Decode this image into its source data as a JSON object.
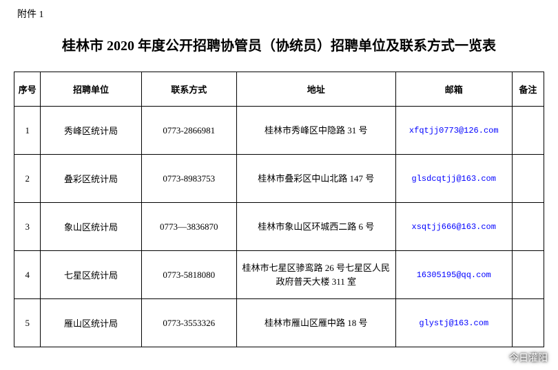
{
  "attachment_label": "附件 1",
  "title": "桂林市 2020 年度公开招聘协管员（协统员）招聘单位及联系方式一览表",
  "table": {
    "columns": [
      "序号",
      "招聘单位",
      "联系方式",
      "地址",
      "邮箱",
      "备注"
    ],
    "rows": [
      {
        "seq": "1",
        "unit": "秀峰区统计局",
        "contact": "0773-2866981",
        "address": "桂林市秀峰区中隐路 31 号",
        "email": "xfqtjj0773@126.com",
        "note": ""
      },
      {
        "seq": "2",
        "unit": "叠彩区统计局",
        "contact": "0773-8983753",
        "address": "桂林市叠彩区中山北路 147 号",
        "email": "glsdcqtjj@163.com",
        "note": ""
      },
      {
        "seq": "3",
        "unit": "象山区统计局",
        "contact": "0773—3836870",
        "address": "桂林市象山区环城西二路 6 号",
        "email": "xsqtjj666@163.com",
        "note": ""
      },
      {
        "seq": "4",
        "unit": "七星区统计局",
        "contact": "0773-5818080",
        "address": "桂林市七星区骖鸾路 26 号七星区人民政府普天大楼 311 室",
        "email": "16305195@qq.com",
        "note": ""
      },
      {
        "seq": "5",
        "unit": "雁山区统计局",
        "contact": "0773-3553326",
        "address": "桂林市雁山区雁中路 18 号",
        "email": "glystj@163.com",
        "note": ""
      }
    ]
  },
  "watermark": {
    "text": "今日灌阳"
  },
  "styling": {
    "page_bg": "#ffffff",
    "text_color": "#000000",
    "email_color": "#0000ff",
    "border_color": "#000000",
    "title_fontsize": 20,
    "body_fontsize": 13
  }
}
